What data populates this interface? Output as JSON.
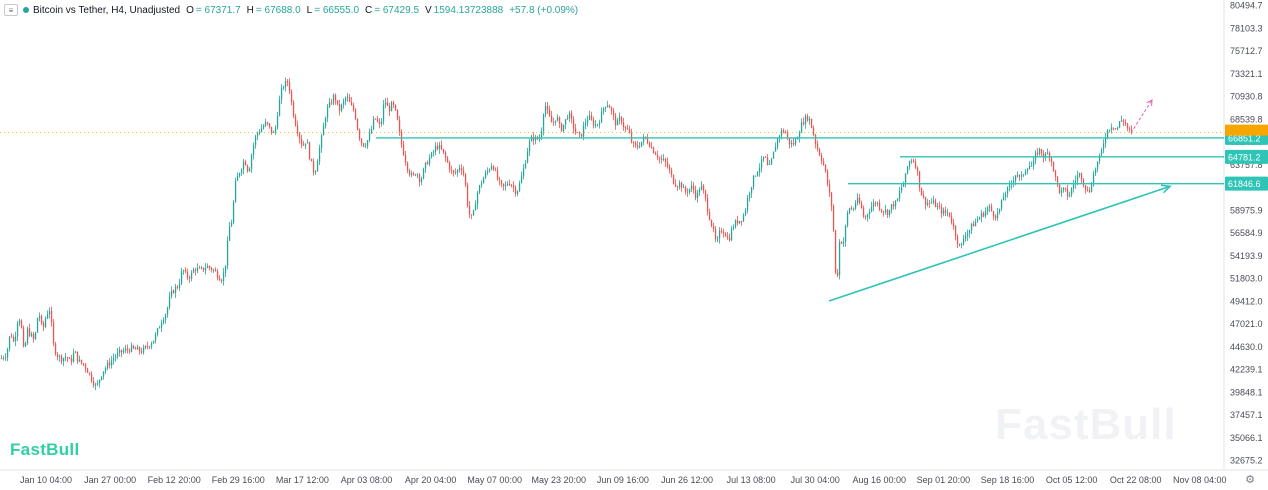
{
  "legend": {
    "toggle_icon": "chevron-collapse-icon",
    "symbol": "Bitcoin vs Tether, H4, Unadjusted",
    "open_label": "O",
    "open": "= 67371.7",
    "high_label": "H",
    "high": "= 67688.0",
    "low_label": "L",
    "low": "= 66555.0",
    "close_label": "C",
    "close": "= 67429.5",
    "volume_label": "V",
    "volume": "1594.13723888",
    "change": "+57.8 (+0.09%)"
  },
  "branding": {
    "logo": "FastBull",
    "watermark": "FastBull"
  },
  "axis_settings_icon": "gear-icon",
  "colors": {
    "up": "#26a69a",
    "down": "#ef5350",
    "line": "#2ec4b6",
    "badge": "#2ec4b6",
    "current": "#f7a600",
    "projection": "#e066b0"
  },
  "chart_data": {
    "type": "candlestick",
    "title": "Bitcoin vs Tether, H4, Unadjusted",
    "price_axis": {
      "ticks": [
        "80494.7",
        "78103.3",
        "75712.7",
        "73321.1",
        "70930.8",
        "68539.8",
        "66148.9",
        "63757.8",
        "61366.8",
        "58975.9",
        "56584.9",
        "54193.9",
        "51803.0",
        "49412.0",
        "47021.0",
        "44630.0",
        "42239.1",
        "39848.1",
        "37457.1",
        "35066.1",
        "32675.2"
      ],
      "range": [
        31600,
        81400
      ]
    },
    "time_axis": {
      "ticks": [
        "Jan 10 04:00",
        "Jan 27 00:00",
        "Feb 12 20:00",
        "Feb 29 16:00",
        "Mar 17 12:00",
        "Apr 03 08:00",
        "Apr 20 04:00",
        "May 07 00:00",
        "May 23 20:00",
        "Jun 09 16:00",
        "Jun 26 12:00",
        "Jul 13 08:00",
        "Jul 30 04:00",
        "Aug 16 00:00",
        "Sep 01 20:00",
        "Sep 18 16:00",
        "Oct 05 12:00",
        "Oct 22 08:00",
        "Nov 08 04:00"
      ]
    },
    "price_path": [
      [
        0,
        42700
      ],
      [
        6,
        43200
      ],
      [
        10,
        45600
      ],
      [
        14,
        44200
      ],
      [
        16,
        46700
      ],
      [
        20,
        47200
      ],
      [
        22,
        44700
      ],
      [
        24,
        42700
      ],
      [
        26,
        46000
      ],
      [
        34,
        44600
      ],
      [
        38,
        48000
      ],
      [
        42,
        45700
      ],
      [
        46,
        47600
      ],
      [
        50,
        48200
      ],
      [
        52,
        44500
      ],
      [
        56,
        43200
      ],
      [
        60,
        42700
      ],
      [
        66,
        42900
      ],
      [
        70,
        42300
      ],
      [
        74,
        43500
      ],
      [
        78,
        42400
      ],
      [
        84,
        42000
      ],
      [
        88,
        41200
      ],
      [
        92,
        40300
      ],
      [
        96,
        39500
      ],
      [
        98,
        40200
      ],
      [
        102,
        41300
      ],
      [
        108,
        42100
      ],
      [
        114,
        42900
      ],
      [
        120,
        43400
      ],
      [
        130,
        43800
      ],
      [
        142,
        43500
      ],
      [
        150,
        44400
      ],
      [
        154,
        44900
      ],
      [
        158,
        46000
      ],
      [
        162,
        47100
      ],
      [
        166,
        47800
      ],
      [
        170,
        49700
      ],
      [
        174,
        50300
      ],
      [
        178,
        50700
      ],
      [
        182,
        52500
      ],
      [
        186,
        51700
      ],
      [
        190,
        51700
      ],
      [
        194,
        52600
      ],
      [
        200,
        52300
      ],
      [
        206,
        52800
      ],
      [
        210,
        52600
      ],
      [
        214,
        52300
      ],
      [
        218,
        51700
      ],
      [
        222,
        51400
      ],
      [
        226,
        53700
      ],
      [
        228,
        56800
      ],
      [
        232,
        58000
      ],
      [
        234,
        61500
      ],
      [
        238,
        62900
      ],
      [
        244,
        64500
      ],
      [
        248,
        63100
      ],
      [
        252,
        65700
      ],
      [
        256,
        67300
      ],
      [
        260,
        67800
      ],
      [
        266,
        68500
      ],
      [
        270,
        67700
      ],
      [
        274,
        67200
      ],
      [
        278,
        70400
      ],
      [
        282,
        72500
      ],
      [
        286,
        72900
      ],
      [
        288,
        73100
      ],
      [
        290,
        71300
      ],
      [
        294,
        68900
      ],
      [
        298,
        67300
      ],
      [
        302,
        65900
      ],
      [
        306,
        66700
      ],
      [
        310,
        64300
      ],
      [
        314,
        62900
      ],
      [
        318,
        65100
      ],
      [
        322,
        67400
      ],
      [
        326,
        69900
      ],
      [
        330,
        70600
      ],
      [
        334,
        71600
      ],
      [
        338,
        69800
      ],
      [
        342,
        70500
      ],
      [
        346,
        71400
      ],
      [
        350,
        70400
      ],
      [
        354,
        69800
      ],
      [
        358,
        67300
      ],
      [
        362,
        66100
      ],
      [
        366,
        66300
      ],
      [
        370,
        67400
      ],
      [
        374,
        69100
      ],
      [
        380,
        68000
      ],
      [
        384,
        71100
      ],
      [
        388,
        69900
      ],
      [
        392,
        70600
      ],
      [
        396,
        69300
      ],
      [
        400,
        66600
      ],
      [
        404,
        64800
      ],
      [
        408,
        63300
      ],
      [
        412,
        62500
      ],
      [
        416,
        63200
      ],
      [
        420,
        62100
      ],
      [
        424,
        63600
      ],
      [
        428,
        64500
      ],
      [
        432,
        65100
      ],
      [
        436,
        66000
      ],
      [
        440,
        65700
      ],
      [
        444,
        64900
      ],
      [
        448,
        63900
      ],
      [
        452,
        62900
      ],
      [
        456,
        63100
      ],
      [
        460,
        63900
      ],
      [
        464,
        62600
      ],
      [
        468,
        58700
      ],
      [
        472,
        57900
      ],
      [
        476,
        60600
      ],
      [
        480,
        61800
      ],
      [
        484,
        62700
      ],
      [
        488,
        63400
      ],
      [
        492,
        64100
      ],
      [
        496,
        62600
      ],
      [
        500,
        61600
      ],
      [
        504,
        61400
      ],
      [
        508,
        62100
      ],
      [
        512,
        61600
      ],
      [
        516,
        60900
      ],
      [
        520,
        62100
      ],
      [
        524,
        63900
      ],
      [
        528,
        66100
      ],
      [
        532,
        66900
      ],
      [
        536,
        66700
      ],
      [
        540,
        66900
      ],
      [
        544,
        70700
      ],
      [
        548,
        69300
      ],
      [
        552,
        68300
      ],
      [
        556,
        69300
      ],
      [
        560,
        67700
      ],
      [
        564,
        68500
      ],
      [
        568,
        69600
      ],
      [
        572,
        68300
      ],
      [
        576,
        67300
      ],
      [
        580,
        66900
      ],
      [
        584,
        68400
      ],
      [
        588,
        69200
      ],
      [
        592,
        68500
      ],
      [
        596,
        68200
      ],
      [
        600,
        69100
      ],
      [
        604,
        70500
      ],
      [
        608,
        70600
      ],
      [
        612,
        69400
      ],
      [
        616,
        68200
      ],
      [
        620,
        69100
      ],
      [
        624,
        67900
      ],
      [
        628,
        67600
      ],
      [
        632,
        66100
      ],
      [
        636,
        65800
      ],
      [
        640,
        66300
      ],
      [
        644,
        66900
      ],
      [
        648,
        66400
      ],
      [
        652,
        65600
      ],
      [
        656,
        65100
      ],
      [
        660,
        64400
      ],
      [
        664,
        64300
      ],
      [
        668,
        63500
      ],
      [
        672,
        62300
      ],
      [
        676,
        61700
      ],
      [
        680,
        61900
      ],
      [
        684,
        60900
      ],
      [
        688,
        61200
      ],
      [
        692,
        61500
      ],
      [
        696,
        60300
      ],
      [
        700,
        61700
      ],
      [
        704,
        60600
      ],
      [
        708,
        58600
      ],
      [
        712,
        57000
      ],
      [
        716,
        55100
      ],
      [
        720,
        56800
      ],
      [
        724,
        56600
      ],
      [
        728,
        55600
      ],
      [
        732,
        57100
      ],
      [
        736,
        57700
      ],
      [
        740,
        57900
      ],
      [
        744,
        58600
      ],
      [
        748,
        60700
      ],
      [
        752,
        62100
      ],
      [
        756,
        63200
      ],
      [
        760,
        63900
      ],
      [
        764,
        64900
      ],
      [
        768,
        63300
      ],
      [
        772,
        64700
      ],
      [
        776,
        66500
      ],
      [
        780,
        67500
      ],
      [
        784,
        67700
      ],
      [
        788,
        66400
      ],
      [
        792,
        66100
      ],
      [
        796,
        66700
      ],
      [
        800,
        68100
      ],
      [
        804,
        68900
      ],
      [
        808,
        69200
      ],
      [
        812,
        67700
      ],
      [
        816,
        65900
      ],
      [
        820,
        64900
      ],
      [
        824,
        63600
      ],
      [
        828,
        61200
      ],
      [
        832,
        58900
      ],
      [
        834,
        54600
      ],
      [
        836,
        49500
      ],
      [
        838,
        54600
      ],
      [
        840,
        56300
      ],
      [
        842,
        54800
      ],
      [
        846,
        57800
      ],
      [
        848,
        59300
      ],
      [
        852,
        58900
      ],
      [
        856,
        60100
      ],
      [
        860,
        59500
      ],
      [
        864,
        57900
      ],
      [
        868,
        58900
      ],
      [
        872,
        59500
      ],
      [
        876,
        59900
      ],
      [
        880,
        59100
      ],
      [
        884,
        58900
      ],
      [
        888,
        58700
      ],
      [
        892,
        59600
      ],
      [
        896,
        59700
      ],
      [
        900,
        61300
      ],
      [
        904,
        62100
      ],
      [
        908,
        64200
      ],
      [
        912,
        64600
      ],
      [
        916,
        63700
      ],
      [
        920,
        61000
      ],
      [
        924,
        59900
      ],
      [
        928,
        59700
      ],
      [
        932,
        59800
      ],
      [
        936,
        59400
      ],
      [
        940,
        58900
      ],
      [
        944,
        58600
      ],
      [
        948,
        58700
      ],
      [
        952,
        57500
      ],
      [
        956,
        55900
      ],
      [
        960,
        54600
      ],
      [
        964,
        56300
      ],
      [
        968,
        56600
      ],
      [
        972,
        57300
      ],
      [
        976,
        57800
      ],
      [
        980,
        58300
      ],
      [
        984,
        58700
      ],
      [
        988,
        59300
      ],
      [
        992,
        58700
      ],
      [
        996,
        58300
      ],
      [
        1000,
        59300
      ],
      [
        1004,
        60800
      ],
      [
        1008,
        61200
      ],
      [
        1012,
        62200
      ],
      [
        1016,
        63100
      ],
      [
        1020,
        62200
      ],
      [
        1024,
        63300
      ],
      [
        1028,
        63900
      ],
      [
        1032,
        63700
      ],
      [
        1036,
        65300
      ],
      [
        1040,
        65500
      ],
      [
        1044,
        64700
      ],
      [
        1048,
        65300
      ],
      [
        1052,
        64000
      ],
      [
        1056,
        61900
      ],
      [
        1060,
        60800
      ],
      [
        1064,
        61200
      ],
      [
        1068,
        60400
      ],
      [
        1072,
        61500
      ],
      [
        1076,
        62600
      ],
      [
        1080,
        62900
      ],
      [
        1084,
        61700
      ],
      [
        1088,
        60700
      ],
      [
        1092,
        62500
      ],
      [
        1096,
        63900
      ],
      [
        1100,
        64900
      ],
      [
        1104,
        66900
      ],
      [
        1108,
        67900
      ],
      [
        1112,
        68300
      ],
      [
        1116,
        67700
      ],
      [
        1120,
        68800
      ],
      [
        1124,
        68700
      ],
      [
        1128,
        67600
      ],
      [
        1132,
        67430
      ]
    ],
    "horizontal_levels": [
      {
        "value": 66851.2,
        "label": "66851.2",
        "x_start": 376
      },
      {
        "value": 64781.2,
        "label": "64781.2",
        "x_start": 900
      },
      {
        "value": 61846.6,
        "label": "61846.6",
        "x_start": 848
      }
    ],
    "current_price": {
      "value": 67429.5
    },
    "trendline": {
      "from": [
        829,
        49000
      ],
      "to": [
        1170,
        61550
      ],
      "arrow": true
    },
    "projection": {
      "from": [
        1131,
        67400
      ],
      "to": [
        1152,
        71000
      ],
      "style": "dashed"
    },
    "grid": false
  }
}
